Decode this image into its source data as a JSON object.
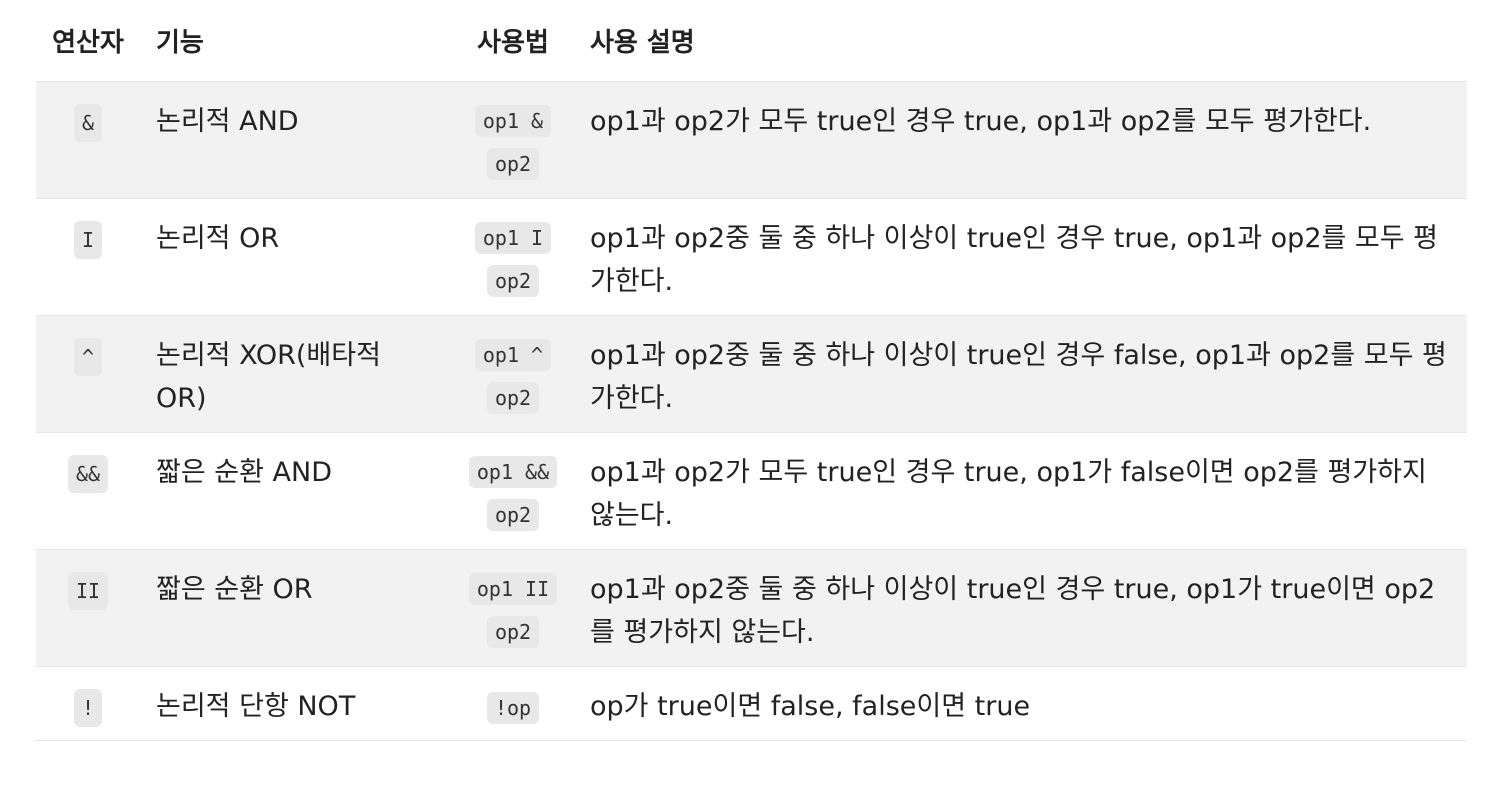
{
  "headers": {
    "operator": "연산자",
    "function": "기능",
    "usage": "사용법",
    "description": "사용 설명"
  },
  "rows": [
    {
      "operator": "&",
      "function": "논리적 AND",
      "usage_1": "op1 &",
      "usage_2": "op2",
      "description": "op1과 op2가 모두 true인 경우 true, op1과 op2를 모두 평가한다."
    },
    {
      "operator": "I",
      "function": "논리적 OR",
      "usage_1": "op1 I",
      "usage_2": "op2",
      "description": "op1과 op2중 둘 중 하나 이상이 true인 경우 true, op1과 op2를 모두 평가한다."
    },
    {
      "operator": "^",
      "function": "논리적 XOR(배타적 OR)",
      "usage_1": "op1 ^",
      "usage_2": "op2",
      "description": "op1과 op2중 둘 중 하나 이상이 true인 경우 false, op1과 op2를 모두 평가한다."
    },
    {
      "operator": "&&",
      "function": "짧은 순환 AND",
      "usage_1": "op1 &&",
      "usage_2": "op2",
      "description": "op1과 op2가 모두 true인 경우 true, op1가 false이면 op2를 평가하지 않는다."
    },
    {
      "operator": "II",
      "function": "짧은 순환 OR",
      "usage_1": "op1 II",
      "usage_2": "op2",
      "description": "op1과 op2중 둘 중 하나 이상이 true인 경우 true, op1가 true이면 op2를 평가하지 않는다."
    },
    {
      "operator": "!",
      "function": "논리적 단항 NOT",
      "usage_1": "!op",
      "usage_2": "",
      "description": "op가 true이면 false, false이면 true"
    }
  ]
}
